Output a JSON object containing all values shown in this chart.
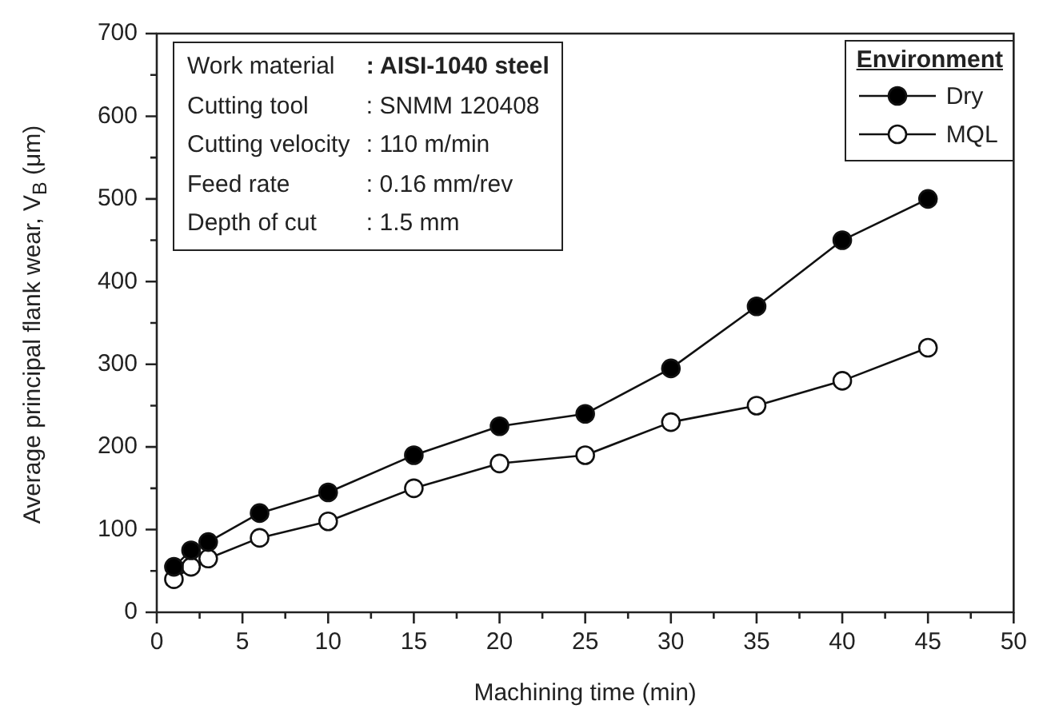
{
  "chart_data": {
    "type": "line",
    "xlabel": "Machining time (min)",
    "ylabel": "Average principal flank wear, V$_{B}$ (μm)",
    "legend_title": "Environment",
    "legend": "top right",
    "marker": "circle",
    "line_style": "solid",
    "grid": false,
    "x": [
      1,
      2,
      3,
      6,
      10,
      15,
      20,
      25,
      30,
      35,
      40,
      45
    ],
    "series": [
      {
        "name": "Dry",
        "color": "#000000",
        "values": [
          55,
          75,
          85,
          120,
          145,
          190,
          225,
          240,
          295,
          370,
          450,
          500
        ]
      },
      {
        "name": "MQL",
        "color": "#ffffff",
        "values": [
          40,
          55,
          65,
          90,
          110,
          150,
          180,
          190,
          230,
          250,
          280,
          320
        ]
      }
    ],
    "xlim": [
      0,
      50
    ],
    "xticks": [
      0,
      {
        "value": 2.5,
        "label": null
      },
      5,
      {
        "value": 7.5,
        "label": null
      },
      10,
      {
        "value": 12.5,
        "label": null
      },
      15,
      {
        "value": 17.5,
        "label": null
      },
      20,
      {
        "value": 22.5,
        "label": null
      },
      25,
      {
        "value": 27.5,
        "label": null
      },
      30,
      {
        "value": 32.5,
        "label": null
      },
      35,
      {
        "value": 37.5,
        "label": null
      },
      40,
      {
        "value": 42.5,
        "label": null
      },
      45,
      {
        "value": 47.5,
        "label": null
      },
      50
    ],
    "ylim": [
      0,
      700
    ],
    "yticks": [
      0,
      {
        "value": 50,
        "label": null
      },
      100,
      {
        "value": 150,
        "label": null
      },
      200,
      {
        "value": 250,
        "label": null
      },
      300,
      {
        "value": 350,
        "label": null
      },
      400,
      {
        "value": 450,
        "label": null
      },
      500,
      {
        "value": 550,
        "label": null
      },
      600,
      {
        "value": 650,
        "label": null
      },
      700
    ],
    "annotations": [
      "Work material : AISI-1040 steel",
      "Cutting tool : SNMM 120408",
      "Cutting velocity : 110 m/min",
      "Feed rate : 0.16 mm/rev",
      "Depth of cut : 1.5 mm"
    ]
  }
}
